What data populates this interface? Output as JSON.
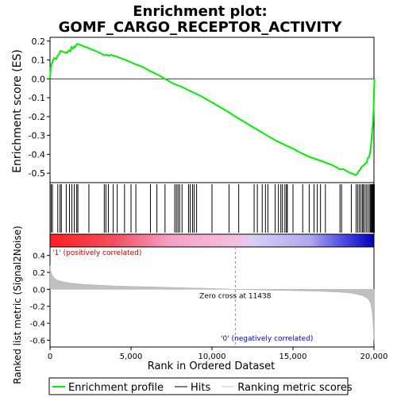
{
  "chart_data": {
    "type": "line",
    "title": "Enrichment plot: GOMF_CARGO_RECEPTOR_ACTIVITY",
    "panels": {
      "enrichment": {
        "ylabel": "Enrichment score (ES)",
        "ylim": [
          -0.55,
          0.22
        ],
        "yticks": [
          {
            "v": 0.2,
            "label": "0.2"
          },
          {
            "v": 0.1,
            "label": "0.1"
          },
          {
            "v": 0.0,
            "label": "0.0"
          },
          {
            "v": -0.1,
            "label": "-0.1"
          },
          {
            "v": -0.2,
            "label": "-0.2"
          },
          {
            "v": -0.3,
            "label": "-0.3"
          },
          {
            "v": -0.4,
            "label": "-0.4"
          },
          {
            "v": -0.5,
            "label": "-0.5"
          }
        ],
        "series_color": "#00ee00",
        "points": [
          [
            0,
            0.0
          ],
          [
            50,
            0.065
          ],
          [
            120,
            0.08
          ],
          [
            180,
            0.1
          ],
          [
            260,
            0.11
          ],
          [
            380,
            0.105
          ],
          [
            480,
            0.125
          ],
          [
            560,
            0.13
          ],
          [
            640,
            0.148
          ],
          [
            760,
            0.145
          ],
          [
            900,
            0.14
          ],
          [
            1050,
            0.138
          ],
          [
            1150,
            0.15
          ],
          [
            1250,
            0.145
          ],
          [
            1320,
            0.168
          ],
          [
            1400,
            0.16
          ],
          [
            1480,
            0.172
          ],
          [
            1560,
            0.168
          ],
          [
            1620,
            0.18
          ],
          [
            1700,
            0.186
          ],
          [
            1800,
            0.182
          ],
          [
            1950,
            0.177
          ],
          [
            2100,
            0.172
          ],
          [
            2250,
            0.168
          ],
          [
            2400,
            0.162
          ],
          [
            2600,
            0.155
          ],
          [
            2800,
            0.148
          ],
          [
            3000,
            0.14
          ],
          [
            3200,
            0.132
          ],
          [
            3350,
            0.125
          ],
          [
            3500,
            0.128
          ],
          [
            3600,
            0.123
          ],
          [
            3750,
            0.127
          ],
          [
            3900,
            0.123
          ],
          [
            4050,
            0.12
          ],
          [
            4300,
            0.112
          ],
          [
            4600,
            0.102
          ],
          [
            4900,
            0.092
          ],
          [
            5200,
            0.08
          ],
          [
            5500,
            0.07
          ],
          [
            5800,
            0.06
          ],
          [
            6100,
            0.045
          ],
          [
            6400,
            0.032
          ],
          [
            6700,
            0.02
          ],
          [
            7000,
            0.005
          ],
          [
            7300,
            -0.01
          ],
          [
            7600,
            -0.025
          ],
          [
            7900,
            -0.035
          ],
          [
            8200,
            -0.045
          ],
          [
            8500,
            -0.058
          ],
          [
            8800,
            -0.07
          ],
          [
            9100,
            -0.082
          ],
          [
            9500,
            -0.1
          ],
          [
            10000,
            -0.125
          ],
          [
            10500,
            -0.15
          ],
          [
            11000,
            -0.175
          ],
          [
            11438,
            -0.2
          ],
          [
            12000,
            -0.228
          ],
          [
            12500,
            -0.255
          ],
          [
            13000,
            -0.28
          ],
          [
            13500,
            -0.305
          ],
          [
            14000,
            -0.33
          ],
          [
            14500,
            -0.35
          ],
          [
            15000,
            -0.37
          ],
          [
            15500,
            -0.393
          ],
          [
            16000,
            -0.413
          ],
          [
            16500,
            -0.428
          ],
          [
            17000,
            -0.443
          ],
          [
            17500,
            -0.46
          ],
          [
            17900,
            -0.48
          ],
          [
            18100,
            -0.478
          ],
          [
            18300,
            -0.488
          ],
          [
            18500,
            -0.498
          ],
          [
            18700,
            -0.503
          ],
          [
            18850,
            -0.51
          ],
          [
            18950,
            -0.505
          ],
          [
            19050,
            -0.49
          ],
          [
            19150,
            -0.48
          ],
          [
            19250,
            -0.465
          ],
          [
            19350,
            -0.46
          ],
          [
            19450,
            -0.45
          ],
          [
            19550,
            -0.445
          ],
          [
            19620,
            -0.42
          ],
          [
            19700,
            -0.415
          ],
          [
            19760,
            -0.39
          ],
          [
            19820,
            -0.35
          ],
          [
            19870,
            -0.3
          ],
          [
            19920,
            -0.25
          ],
          [
            19960,
            -0.19
          ],
          [
            19990,
            -0.12
          ],
          [
            20010,
            -0.05
          ],
          [
            20030,
            0.0
          ]
        ]
      },
      "hits": {
        "positions": [
          70,
          150,
          480,
          620,
          700,
          1000,
          1200,
          1350,
          1500,
          1650,
          1720,
          2400,
          3350,
          3450,
          3600,
          3900,
          4150,
          4600,
          5000,
          5300,
          6200,
          6600,
          7100,
          7700,
          7800,
          7900,
          8000,
          8150,
          8550,
          8650,
          8800,
          8900,
          9050,
          10000,
          11050,
          11650,
          12600,
          12800,
          13100,
          13300,
          13450,
          13900,
          14100,
          14250,
          14350,
          14500,
          14600,
          14650,
          15000,
          15600,
          16000,
          16300,
          16500,
          16700,
          17000,
          17900,
          18000,
          18600,
          18900,
          19000,
          19100,
          19200,
          19300,
          19350,
          19450,
          19550,
          19650,
          19750,
          19800,
          19850,
          19900,
          19930,
          19960,
          19980,
          20000,
          20020
        ]
      },
      "ranking": {
        "ylabel": "Ranked list metric (Signal2Noise)",
        "xlabel": "Rank in Ordered Dataset",
        "xlim": [
          0,
          20000
        ],
        "ylim": [
          -0.68,
          0.5
        ],
        "xticks": [
          {
            "v": 0,
            "label": "0"
          },
          {
            "v": 5000,
            "label": "5,000"
          },
          {
            "v": 10000,
            "label": "10,000"
          },
          {
            "v": 15000,
            "label": "15,000"
          },
          {
            "v": 20000,
            "label": "20,000"
          }
        ],
        "yticks": [
          {
            "v": 0.4,
            "label": "0.4"
          },
          {
            "v": 0.2,
            "label": "0.2"
          },
          {
            "v": 0.0,
            "label": "0.0"
          },
          {
            "v": -0.2,
            "label": "-0.2"
          },
          {
            "v": -0.4,
            "label": "-0.4"
          },
          {
            "v": -0.6,
            "label": "-0.6"
          }
        ],
        "zero_cross": 11438,
        "zero_cross_label": "Zero cross at 11438",
        "positive_label": "'1' (positively correlated)",
        "negative_label": "'0' (negatively correlated)",
        "profile": [
          [
            0,
            0.28
          ],
          [
            40,
            0.22
          ],
          [
            100,
            0.18
          ],
          [
            200,
            0.15
          ],
          [
            350,
            0.12
          ],
          [
            500,
            0.105
          ],
          [
            800,
            0.09
          ],
          [
            1200,
            0.075
          ],
          [
            2000,
            0.06
          ],
          [
            3000,
            0.05
          ],
          [
            4000,
            0.04
          ],
          [
            5000,
            0.035
          ],
          [
            6000,
            0.03
          ],
          [
            7000,
            0.025
          ],
          [
            8000,
            0.02
          ],
          [
            9000,
            0.015
          ],
          [
            10000,
            0.01
          ],
          [
            11000,
            0.004
          ],
          [
            11438,
            0.0
          ],
          [
            12000,
            -0.004
          ],
          [
            13000,
            -0.008
          ],
          [
            14000,
            -0.012
          ],
          [
            15000,
            -0.016
          ],
          [
            16000,
            -0.02
          ],
          [
            17000,
            -0.026
          ],
          [
            18000,
            -0.035
          ],
          [
            18600,
            -0.045
          ],
          [
            19000,
            -0.06
          ],
          [
            19300,
            -0.075
          ],
          [
            19550,
            -0.1
          ],
          [
            19700,
            -0.13
          ],
          [
            19800,
            -0.17
          ],
          [
            19880,
            -0.25
          ],
          [
            19940,
            -0.4
          ],
          [
            19980,
            -0.55
          ],
          [
            20030,
            -0.65
          ]
        ]
      }
    },
    "legend": [
      {
        "label": "Enrichment profile",
        "color": "#00ee00"
      },
      {
        "label": "Hits",
        "color": "#000000"
      },
      {
        "label": "Ranking metric scores",
        "color": "#c0c0c0"
      }
    ]
  }
}
